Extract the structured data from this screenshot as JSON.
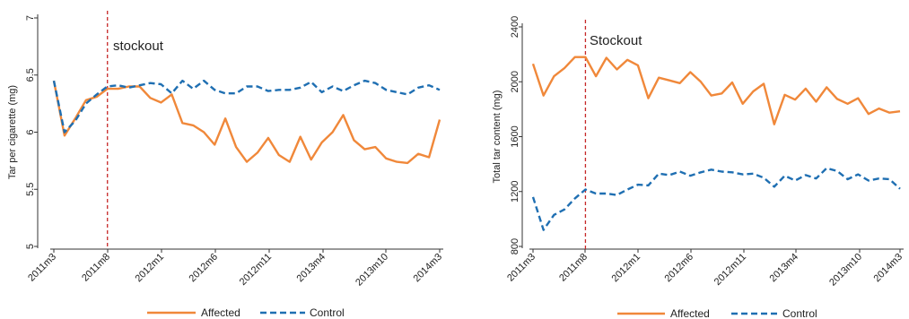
{
  "chart_data": [
    {
      "type": "line",
      "ylabel": "Tar per cigarette (mg)",
      "ylim": [
        5,
        7
      ],
      "yticks": [
        "5",
        "5.5",
        "6",
        "6.5",
        "7"
      ],
      "x_tick_labels": [
        "2011m3",
        "2011m8",
        "2012m1",
        "2012m6",
        "2012m11",
        "2013m4",
        "2013m10",
        "2014m3"
      ],
      "annotation": "stockout",
      "series": [
        {
          "name": "Affected",
          "color": "#f0883a",
          "dash": "solid",
          "values": [
            6.45,
            5.97,
            6.12,
            6.28,
            6.31,
            6.38,
            6.38,
            6.4,
            6.4,
            6.3,
            6.26,
            6.33,
            6.08,
            6.06,
            6.0,
            5.89,
            6.12,
            5.87,
            5.74,
            5.82,
            5.95,
            5.8,
            5.74,
            5.96,
            5.76,
            5.91,
            6.0,
            6.15,
            5.93,
            5.85,
            5.87,
            5.77,
            5.74,
            5.73,
            5.81,
            5.78,
            6.11
          ]
        },
        {
          "name": "Control",
          "color": "#1f6fb2",
          "dash": "dash",
          "values": [
            6.45,
            6.0,
            6.1,
            6.25,
            6.33,
            6.4,
            6.41,
            6.39,
            6.41,
            6.43,
            6.42,
            6.34,
            6.45,
            6.38,
            6.45,
            6.37,
            6.34,
            6.34,
            6.4,
            6.4,
            6.36,
            6.37,
            6.37,
            6.39,
            6.44,
            6.35,
            6.4,
            6.36,
            6.41,
            6.45,
            6.43,
            6.37,
            6.35,
            6.33,
            6.39,
            6.41,
            6.37
          ]
        }
      ]
    },
    {
      "type": "line",
      "ylabel": "Total tar content (mg)",
      "ylim": [
        800,
        2400
      ],
      "yticks": [
        "800",
        "1200",
        "1600",
        "2000",
        "2400"
      ],
      "x_tick_labels": [
        "2011m3",
        "2011m8",
        "2012m1",
        "2012m6",
        "2012m11",
        "2013m4",
        "2013m10",
        "2014m3"
      ],
      "annotation": "Stockout",
      "series": [
        {
          "name": "Affected",
          "color": "#f0883a",
          "dash": "solid",
          "values": [
            2130,
            1900,
            2040,
            2100,
            2180,
            2180,
            2040,
            2175,
            2090,
            2160,
            2120,
            1880,
            2030,
            2010,
            1990,
            2070,
            2000,
            1900,
            1915,
            1995,
            1840,
            1930,
            1985,
            1690,
            1905,
            1870,
            1950,
            1855,
            1960,
            1875,
            1840,
            1880,
            1765,
            1805,
            1775,
            1785
          ]
        },
        {
          "name": "Control",
          "color": "#1f6fb2",
          "dash": "dash",
          "values": [
            1160,
            920,
            1030,
            1070,
            1150,
            1215,
            1185,
            1185,
            1175,
            1215,
            1250,
            1245,
            1330,
            1320,
            1345,
            1315,
            1340,
            1360,
            1345,
            1340,
            1325,
            1330,
            1300,
            1235,
            1315,
            1280,
            1320,
            1295,
            1370,
            1350,
            1290,
            1325,
            1280,
            1295,
            1290,
            1220
          ]
        }
      ]
    }
  ],
  "legend": {
    "affected": "Affected",
    "control": "Control"
  }
}
